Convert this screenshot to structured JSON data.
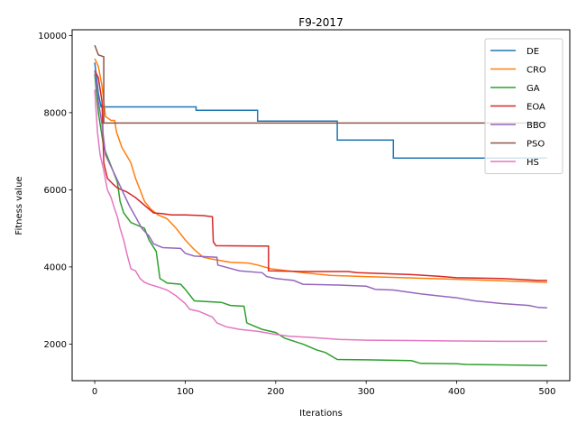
{
  "chart_data": {
    "type": "line",
    "title": "F9-2017",
    "xlabel": "Iterations",
    "ylabel": "Fitness value",
    "xlim": [
      -25,
      525
    ],
    "ylim": [
      1050,
      10150
    ],
    "xticks": [
      0,
      100,
      200,
      300,
      400,
      500
    ],
    "yticks": [
      2000,
      4000,
      6000,
      8000,
      10000
    ],
    "legend": "top-right",
    "grid": false,
    "series": [
      {
        "name": "DE",
        "color": "#1f77b4",
        "points": [
          [
            0,
            9300
          ],
          [
            2,
            8900
          ],
          [
            4,
            8500
          ],
          [
            7,
            8150
          ],
          [
            112,
            8150
          ],
          [
            112,
            8060
          ],
          [
            180,
            8060
          ],
          [
            180,
            7780
          ],
          [
            268,
            7780
          ],
          [
            268,
            7290
          ],
          [
            330,
            7290
          ],
          [
            330,
            6820
          ],
          [
            500,
            6820
          ]
        ]
      },
      {
        "name": "CRO",
        "color": "#ff7f0e",
        "points": [
          [
            0,
            9400
          ],
          [
            4,
            9200
          ],
          [
            8,
            8700
          ],
          [
            12,
            7900
          ],
          [
            18,
            7800
          ],
          [
            22,
            7800
          ],
          [
            24,
            7500
          ],
          [
            30,
            7100
          ],
          [
            35,
            6900
          ],
          [
            40,
            6700
          ],
          [
            45,
            6300
          ],
          [
            50,
            6000
          ],
          [
            55,
            5700
          ],
          [
            62,
            5500
          ],
          [
            70,
            5350
          ],
          [
            80,
            5250
          ],
          [
            90,
            5000
          ],
          [
            100,
            4700
          ],
          [
            110,
            4450
          ],
          [
            120,
            4250
          ],
          [
            130,
            4200
          ],
          [
            150,
            4120
          ],
          [
            170,
            4100
          ],
          [
            180,
            4050
          ],
          [
            195,
            3950
          ],
          [
            230,
            3850
          ],
          [
            260,
            3780
          ],
          [
            300,
            3750
          ],
          [
            400,
            3680
          ],
          [
            500,
            3600
          ]
        ]
      },
      {
        "name": "GA",
        "color": "#2ca02c",
        "points": [
          [
            0,
            9000
          ],
          [
            4,
            8000
          ],
          [
            10,
            7100
          ],
          [
            15,
            6800
          ],
          [
            20,
            6500
          ],
          [
            25,
            6200
          ],
          [
            28,
            5700
          ],
          [
            32,
            5400
          ],
          [
            40,
            5150
          ],
          [
            55,
            5000
          ],
          [
            60,
            4700
          ],
          [
            68,
            4400
          ],
          [
            72,
            3700
          ],
          [
            80,
            3580
          ],
          [
            95,
            3550
          ],
          [
            100,
            3420
          ],
          [
            110,
            3120
          ],
          [
            140,
            3080
          ],
          [
            150,
            3000
          ],
          [
            165,
            2980
          ],
          [
            168,
            2550
          ],
          [
            175,
            2480
          ],
          [
            185,
            2380
          ],
          [
            200,
            2300
          ],
          [
            210,
            2150
          ],
          [
            230,
            2000
          ],
          [
            245,
            1850
          ],
          [
            255,
            1780
          ],
          [
            268,
            1600
          ],
          [
            300,
            1590
          ],
          [
            350,
            1570
          ],
          [
            360,
            1500
          ],
          [
            400,
            1490
          ],
          [
            410,
            1470
          ],
          [
            450,
            1460
          ],
          [
            500,
            1440
          ]
        ]
      },
      {
        "name": "EOA",
        "color": "#d62728",
        "points": [
          [
            0,
            9100
          ],
          [
            4,
            8900
          ],
          [
            8,
            8300
          ],
          [
            10,
            6700
          ],
          [
            14,
            6300
          ],
          [
            20,
            6150
          ],
          [
            25,
            6050
          ],
          [
            35,
            5950
          ],
          [
            45,
            5800
          ],
          [
            55,
            5600
          ],
          [
            65,
            5400
          ],
          [
            75,
            5380
          ],
          [
            85,
            5350
          ],
          [
            100,
            5350
          ],
          [
            120,
            5330
          ],
          [
            130,
            5300
          ],
          [
            131,
            4650
          ],
          [
            134,
            4550
          ],
          [
            180,
            4540
          ],
          [
            192,
            4540
          ],
          [
            192,
            3900
          ],
          [
            230,
            3880
          ],
          [
            280,
            3880
          ],
          [
            290,
            3850
          ],
          [
            350,
            3800
          ],
          [
            380,
            3760
          ],
          [
            400,
            3720
          ],
          [
            450,
            3700
          ],
          [
            490,
            3650
          ],
          [
            500,
            3650
          ]
        ]
      },
      {
        "name": "BBO",
        "color": "#9467bd",
        "points": [
          [
            0,
            9100
          ],
          [
            4,
            8300
          ],
          [
            8,
            7700
          ],
          [
            12,
            6900
          ],
          [
            18,
            6600
          ],
          [
            24,
            6300
          ],
          [
            30,
            6000
          ],
          [
            38,
            5600
          ],
          [
            45,
            5300
          ],
          [
            52,
            5000
          ],
          [
            60,
            4800
          ],
          [
            65,
            4600
          ],
          [
            70,
            4550
          ],
          [
            75,
            4500
          ],
          [
            95,
            4480
          ],
          [
            100,
            4350
          ],
          [
            110,
            4280
          ],
          [
            135,
            4250
          ],
          [
            136,
            4050
          ],
          [
            160,
            3900
          ],
          [
            185,
            3850
          ],
          [
            190,
            3750
          ],
          [
            200,
            3700
          ],
          [
            220,
            3650
          ],
          [
            230,
            3550
          ],
          [
            270,
            3530
          ],
          [
            300,
            3500
          ],
          [
            310,
            3420
          ],
          [
            330,
            3400
          ],
          [
            360,
            3300
          ],
          [
            380,
            3250
          ],
          [
            400,
            3200
          ],
          [
            420,
            3120
          ],
          [
            450,
            3050
          ],
          [
            480,
            3000
          ],
          [
            490,
            2950
          ],
          [
            500,
            2940
          ]
        ]
      },
      {
        "name": "PSO",
        "color": "#8c564b",
        "points": [
          [
            0,
            9750
          ],
          [
            4,
            9500
          ],
          [
            10,
            9450
          ],
          [
            10,
            7730
          ],
          [
            500,
            7730
          ]
        ]
      },
      {
        "name": "HS",
        "color": "#e377c2",
        "points": [
          [
            0,
            8600
          ],
          [
            3,
            7500
          ],
          [
            6,
            6900
          ],
          [
            10,
            6500
          ],
          [
            14,
            6000
          ],
          [
            18,
            5800
          ],
          [
            22,
            5500
          ],
          [
            25,
            5300
          ],
          [
            28,
            5000
          ],
          [
            32,
            4700
          ],
          [
            36,
            4300
          ],
          [
            40,
            3950
          ],
          [
            45,
            3900
          ],
          [
            50,
            3700
          ],
          [
            55,
            3600
          ],
          [
            60,
            3550
          ],
          [
            70,
            3480
          ],
          [
            80,
            3400
          ],
          [
            90,
            3250
          ],
          [
            100,
            3050
          ],
          [
            105,
            2900
          ],
          [
            115,
            2850
          ],
          [
            130,
            2700
          ],
          [
            135,
            2550
          ],
          [
            145,
            2450
          ],
          [
            160,
            2380
          ],
          [
            180,
            2330
          ],
          [
            200,
            2250
          ],
          [
            215,
            2200
          ],
          [
            240,
            2170
          ],
          [
            270,
            2120
          ],
          [
            300,
            2100
          ],
          [
            350,
            2090
          ],
          [
            400,
            2080
          ],
          [
            450,
            2070
          ],
          [
            500,
            2070
          ]
        ]
      }
    ]
  }
}
